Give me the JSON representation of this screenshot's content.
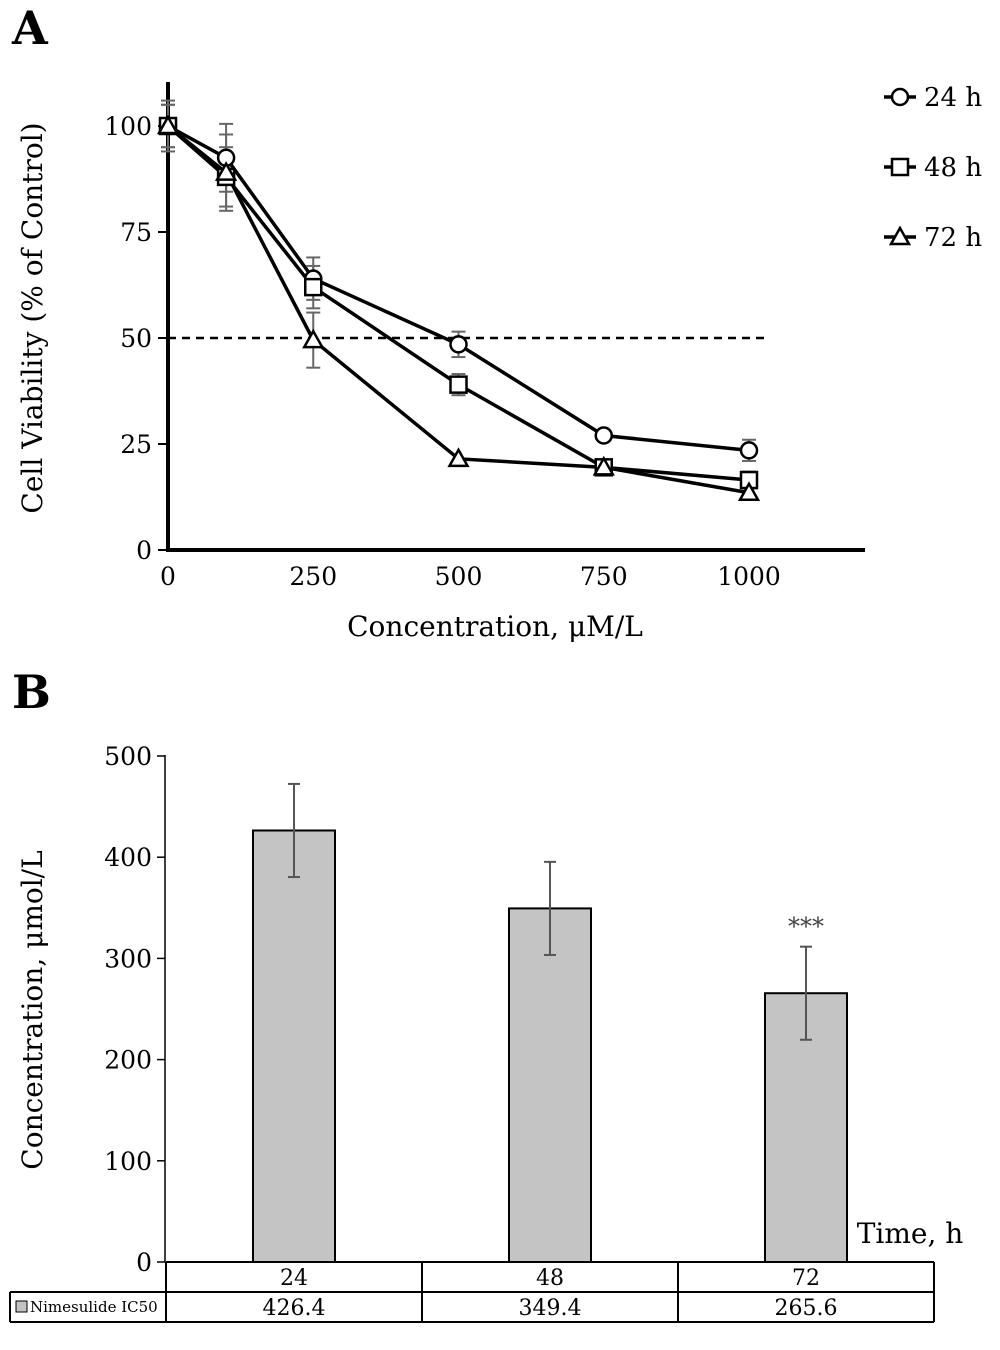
{
  "panel_a": {
    "label": "A",
    "chart_data": {
      "type": "line",
      "xlabel": "Concentration, μM/L",
      "ylabel": "Cell Viability (% of Control)",
      "x_ticks": [
        "0",
        "250",
        "500",
        "750",
        "1000"
      ],
      "y_ticks": [
        "0",
        "25",
        "50",
        "75",
        "100"
      ],
      "xlim": [
        0,
        1200
      ],
      "ylim": [
        0,
        110
      ],
      "x": [
        0,
        100,
        250,
        500,
        750,
        1000
      ],
      "reference_line": {
        "y": 50,
        "style": "dashed"
      },
      "series": [
        {
          "name": "24 h",
          "marker": "circle",
          "values": [
            100,
            92.5,
            64,
            48.5,
            27,
            23.5
          ],
          "errors": [
            5,
            8,
            5,
            3,
            0,
            2.5
          ]
        },
        {
          "name": "48 h",
          "marker": "square",
          "values": [
            100,
            88,
            62,
            39,
            19.5,
            16.5
          ],
          "errors": [
            5,
            7,
            5,
            2.5,
            1,
            2
          ]
        },
        {
          "name": "72 h",
          "marker": "triangle",
          "values": [
            100,
            89,
            49.5,
            21.5,
            19.5,
            13.5
          ],
          "errors": [
            6,
            9,
            6.5,
            0,
            0,
            1.5
          ]
        }
      ]
    }
  },
  "panel_b": {
    "label": "B",
    "chart_data": {
      "type": "bar",
      "ylabel": "Concentration, μmol/L",
      "xlabel": "Time, h",
      "y_ticks": [
        "0",
        "100",
        "200",
        "300",
        "400",
        "500"
      ],
      "ylim": [
        0,
        500
      ],
      "categories": [
        "24",
        "48",
        "72"
      ],
      "series": [
        {
          "name": "Nimesulide IC50",
          "values": [
            426.4,
            349.4,
            265.6
          ],
          "errors": [
            46,
            46,
            46
          ]
        }
      ],
      "value_labels": [
        "426.4",
        "349.4",
        "265.6"
      ],
      "annotations": [
        {
          "category": "72",
          "text": "***"
        }
      ],
      "bar_color": "#c4c4c4"
    }
  }
}
